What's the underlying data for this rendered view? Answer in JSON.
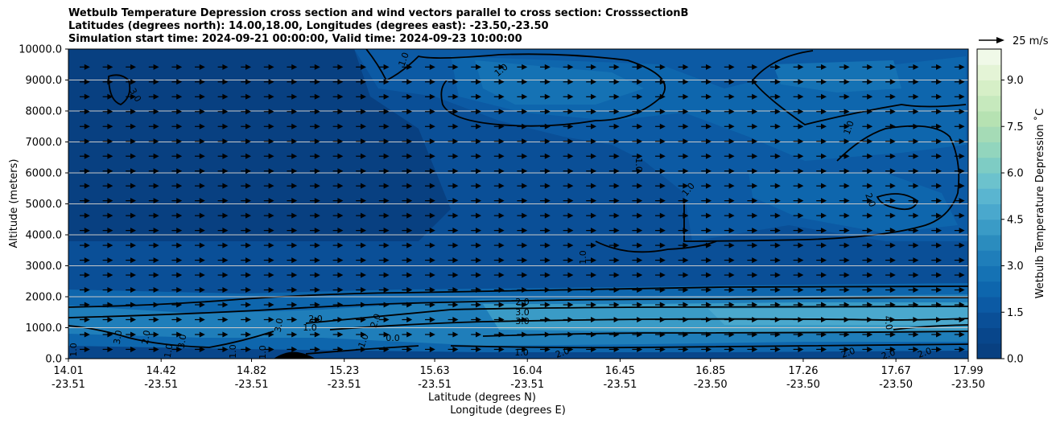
{
  "chart_data": {
    "type": "heatmap",
    "title_lines": [
      "Wetbulb Temperature Depression cross section and wind vectors parallel to cross section: CrosssectionB",
      "Latitudes (degrees north): 14.00,18.00, Longitudes (degrees east): -23.50,-23.50",
      "Simulation start time: 2024-09-21 00:00:00, Valid time: 2024-09-23 10:00:00"
    ],
    "ylabel": "Altitude (meters)",
    "xlabel": "Latitude (degrees N)",
    "xlabel2": "Longitude (degrees E)",
    "ylim": [
      0,
      10000
    ],
    "y_ticks": [
      "0.0",
      "1000.0",
      "2000.0",
      "3000.0",
      "4000.0",
      "5000.0",
      "6000.0",
      "7000.0",
      "8000.0",
      "9000.0",
      "10000.0"
    ],
    "y_tick_values": [
      0,
      1000,
      2000,
      3000,
      4000,
      5000,
      6000,
      7000,
      8000,
      9000,
      10000
    ],
    "x_range": [
      14.01,
      17.99
    ],
    "x_ticks": [
      {
        "lat": "14.01",
        "lon": "-23.51",
        "value": 14.01
      },
      {
        "lat": "14.42",
        "lon": "-23.51",
        "value": 14.42
      },
      {
        "lat": "14.82",
        "lon": "-23.51",
        "value": 14.82
      },
      {
        "lat": "15.23",
        "lon": "-23.51",
        "value": 15.23
      },
      {
        "lat": "15.63",
        "lon": "-23.51",
        "value": 15.63
      },
      {
        "lat": "16.04",
        "lon": "-23.51",
        "value": 16.04
      },
      {
        "lat": "16.45",
        "lon": "-23.51",
        "value": 16.45
      },
      {
        "lat": "16.85",
        "lon": "-23.50",
        "value": 16.85
      },
      {
        "lat": "17.26",
        "lon": "-23.50",
        "value": 17.26
      },
      {
        "lat": "17.67",
        "lon": "-23.50",
        "value": 17.67
      },
      {
        "lat": "17.99",
        "lon": "-23.50",
        "value": 17.99
      }
    ],
    "grid": "horizontal",
    "colorbar": {
      "label": "Wetbulb Temperature Depression ˚C",
      "range": [
        0,
        10
      ],
      "ticks": [
        "0.0",
        "1.5",
        "3.0",
        "4.5",
        "6.0",
        "7.5",
        "9.0"
      ],
      "tick_values": [
        0,
        1.5,
        3,
        4.5,
        6,
        7.5,
        9
      ],
      "levels": 20,
      "colors": [
        "#084081",
        "#08468b",
        "#0a4f97",
        "#0c5aa4",
        "#0e66ad",
        "#1572b4",
        "#1f7eba",
        "#2b8cbe",
        "#3a9bc6",
        "#4aa8cd",
        "#5ab5d0",
        "#6cc2cd",
        "#7eccc4",
        "#92d5bd",
        "#a5dbb6",
        "#b6e2b2",
        "#c6e9bd",
        "#d6efc7",
        "#e4f4d6",
        "#f0f9e8"
      ]
    },
    "quiver_key": {
      "label": "25 m/s",
      "value": 25
    },
    "wind": {
      "u_m_s": 10,
      "direction": "parallel to section, towards increasing latitude"
    },
    "depression_field": [
      {
        "alt_range": [
          0,
          300
        ],
        "value": 0.5
      },
      {
        "alt_range": [
          300,
          1300
        ],
        "value": 2.5
      },
      {
        "alt_range": [
          800,
          1200
        ],
        "value": 3.5,
        "lat_range": [
          16.5,
          17.99
        ]
      },
      {
        "alt_range": [
          1300,
          2200
        ],
        "value": 1.5
      },
      {
        "alt_range": [
          2200,
          10000
        ],
        "value": 0.8
      }
    ],
    "contour_labels": [
      "0.0",
      "1.0",
      "2.0",
      "3.0",
      "4.0"
    ]
  }
}
